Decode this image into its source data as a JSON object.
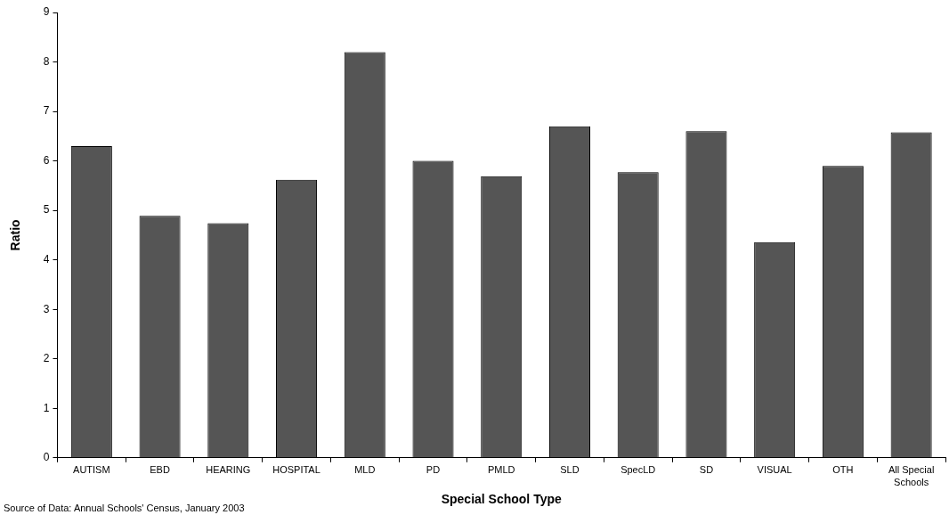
{
  "chart_data": {
    "type": "bar",
    "xlabel": "Special School Type",
    "ylabel": "Ratio",
    "categories": [
      "AUTISM",
      "EBD",
      "HEARING",
      "HOSPITAL",
      "MLD",
      "PD",
      "PMLD",
      "SLD",
      "SpecLD",
      "SD",
      "VISUAL",
      "OTH",
      "All Special Schools"
    ],
    "values": [
      6.3,
      4.89,
      4.74,
      5.62,
      8.2,
      6.0,
      5.69,
      6.7,
      5.77,
      6.6,
      4.36,
      5.9,
      6.58
    ],
    "color": "#555555",
    "ylim": [
      0,
      9
    ],
    "yticks": [
      0,
      1,
      2,
      3,
      4,
      5,
      6,
      7,
      8,
      9
    ],
    "grid": false,
    "legend": false,
    "annotations": [
      "Source of Data: Annual Schools' Census, January 2003"
    ]
  }
}
